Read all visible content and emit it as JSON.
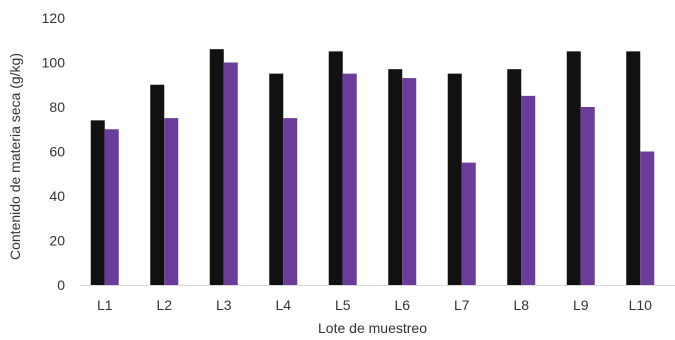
{
  "chart_data": {
    "type": "bar",
    "title": "",
    "xlabel": "Lote de muestreo",
    "ylabel": "Contenido de materia seca (g/kg)",
    "ylim": [
      0,
      120
    ],
    "yticks": [
      "0",
      "20",
      "40",
      "60",
      "80",
      "100",
      "120"
    ],
    "categories": [
      "L1",
      "L2",
      "L3",
      "L4",
      "L5",
      "L6",
      "L7",
      "L8",
      "L9",
      "L10"
    ],
    "grid": false,
    "legend": "none",
    "series": [
      {
        "color": "#111111",
        "values": [
          74,
          90,
          106,
          95,
          105,
          97,
          95,
          97,
          105,
          105
        ]
      },
      {
        "color": "#6a3d9a",
        "values": [
          70,
          75,
          100,
          75,
          95,
          93,
          55,
          85,
          80,
          60
        ]
      }
    ]
  }
}
